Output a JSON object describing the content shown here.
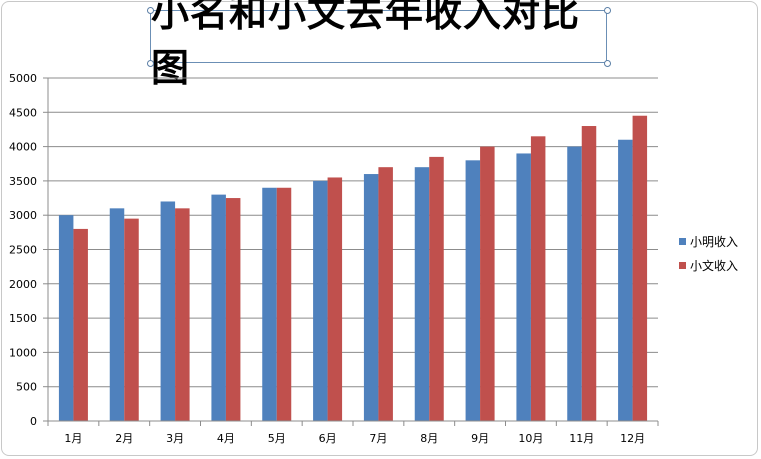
{
  "chart_data": {
    "type": "bar",
    "title": "小名和小文去年收入对比图",
    "categories": [
      "1月",
      "2月",
      "3月",
      "4月",
      "5月",
      "6月",
      "7月",
      "8月",
      "9月",
      "10月",
      "11月",
      "12月"
    ],
    "series": [
      {
        "name": "小明收入",
        "color": "#4f81bd",
        "values": [
          3000,
          3100,
          3200,
          3300,
          3400,
          3500,
          3600,
          3700,
          3800,
          3900,
          4000,
          4100
        ]
      },
      {
        "name": "小文收入",
        "color": "#c0504d",
        "values": [
          2800,
          2950,
          3100,
          3250,
          3400,
          3550,
          3700,
          3850,
          4000,
          4150,
          4300,
          4450
        ]
      }
    ],
    "ylim": [
      0,
      5000
    ],
    "yticks": [
      "0",
      "500",
      "1000",
      "1500",
      "2000",
      "2500",
      "3000",
      "3500",
      "4000",
      "4500",
      "5000"
    ],
    "grid": true,
    "legend_position": "right"
  }
}
